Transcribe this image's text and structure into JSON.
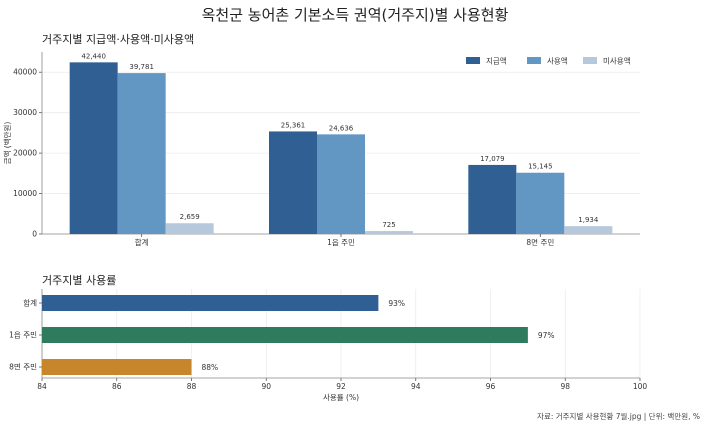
{
  "title": "옥천군 농어촌 기본소득 권역(거주지)별 사용현황",
  "footnote": "자료: 거주지별 사용현황 7월.jpg  |  단위: 백만원, %",
  "chart_data": [
    {
      "type": "bar",
      "title": "거주지별 지급액·사용액·미사용액",
      "categories": [
        "합계",
        "1읍 주민",
        "8면 주민"
      ],
      "series": [
        {
          "name": "지급액",
          "color": "#2f5f93",
          "values": [
            42440,
            25361,
            17079
          ],
          "labels": [
            "42,440",
            "25,361",
            "17,079"
          ]
        },
        {
          "name": "사용액",
          "color": "#6296c3",
          "values": [
            39781,
            24636,
            15145
          ],
          "labels": [
            "39,781",
            "24,636",
            "15,145"
          ]
        },
        {
          "name": "미사용액",
          "color": "#b6c8dc",
          "values": [
            2659,
            725,
            1934
          ],
          "labels": [
            "2,659",
            "725",
            "1,934"
          ]
        }
      ],
      "ylabel": "금액 (백만원)",
      "xlabel": "",
      "ylim": [
        0,
        45000
      ],
      "yticks": [
        0,
        10000,
        20000,
        30000,
        40000
      ],
      "grid": true,
      "legend": "top-right"
    },
    {
      "type": "bar",
      "orientation": "horizontal",
      "title": "거주지별 사용률",
      "categories": [
        "합계",
        "1읍 주민",
        "8면 주민"
      ],
      "values": [
        93,
        97,
        88
      ],
      "labels": [
        "93%",
        "97%",
        "88%"
      ],
      "colors": [
        "#2f5f93",
        "#2e7b5e",
        "#c8862a"
      ],
      "xlabel": "사용률 (%)",
      "ylabel": "",
      "xlim": [
        84,
        100
      ],
      "xticks": [
        84,
        86,
        88,
        90,
        92,
        94,
        96,
        98,
        100
      ],
      "grid": true
    }
  ]
}
